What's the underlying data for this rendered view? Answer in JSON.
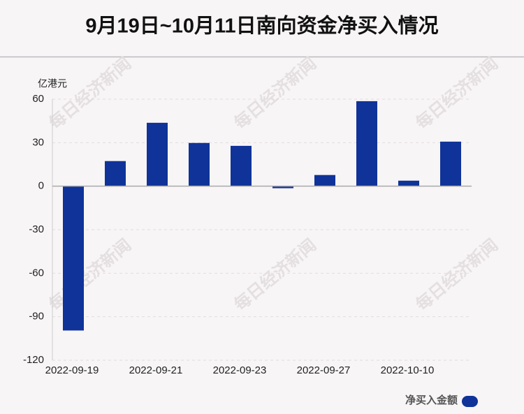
{
  "chart_data": {
    "type": "bar",
    "title": "9月19日~10月11日南向资金净买入情况",
    "y_axis_label": "亿港元",
    "watermark": "每日经济新闻",
    "categories": [
      "2022-09-19",
      null,
      "2022-09-21",
      null,
      "2022-09-23",
      null,
      "2022-09-27",
      null,
      "2022-10-10",
      null
    ],
    "series": [
      {
        "name": "净买入金额",
        "color": "#0f3399",
        "values": [
          -99.5,
          17.3,
          43.7,
          29.8,
          27.8,
          -1.4,
          7.7,
          58.6,
          3.8,
          30.7
        ]
      }
    ],
    "ylim": [
      -120,
      60
    ],
    "yticks": [
      -120,
      -90,
      -60,
      -30,
      0,
      30,
      60
    ],
    "grid": true
  }
}
